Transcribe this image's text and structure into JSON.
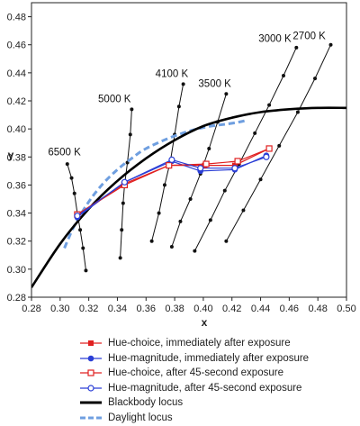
{
  "chart_data": {
    "type": "line",
    "xlabel": "x",
    "ylabel": "y",
    "xlim": [
      0.28,
      0.5
    ],
    "ylim": [
      0.28,
      0.49
    ],
    "xticks": [
      "0.28",
      "0.30",
      "0.32",
      "0.34",
      "0.36",
      "0.38",
      "0.40",
      "0.42",
      "0.44",
      "0.46",
      "0.48",
      "0.50"
    ],
    "yticks": [
      "0.28",
      "0.30",
      "0.32",
      "0.34",
      "0.36",
      "0.38",
      "0.40",
      "0.42",
      "0.44",
      "0.46",
      "0.48"
    ],
    "grid": false,
    "legend_position": "bottom",
    "blackbody_locus": [
      [
        0.28,
        0.287
      ],
      [
        0.3,
        0.318
      ],
      [
        0.32,
        0.343
      ],
      [
        0.34,
        0.363
      ],
      [
        0.36,
        0.379
      ],
      [
        0.38,
        0.392
      ],
      [
        0.4,
        0.402
      ],
      [
        0.42,
        0.408
      ],
      [
        0.44,
        0.412
      ],
      [
        0.46,
        0.414
      ],
      [
        0.48,
        0.415
      ],
      [
        0.5,
        0.415
      ]
    ],
    "daylight_locus": [
      [
        0.303,
        0.315
      ],
      [
        0.31,
        0.331
      ],
      [
        0.32,
        0.348
      ],
      [
        0.33,
        0.361
      ],
      [
        0.34,
        0.371
      ],
      [
        0.35,
        0.379
      ],
      [
        0.36,
        0.386
      ],
      [
        0.38,
        0.395
      ],
      [
        0.4,
        0.401
      ],
      [
        0.42,
        0.404
      ],
      [
        0.43,
        0.406
      ]
    ],
    "cct_lines": [
      {
        "label": "6500 K",
        "points": [
          [
            0.305,
            0.375
          ],
          [
            0.308,
            0.365
          ],
          [
            0.31,
            0.354
          ],
          [
            0.312,
            0.34
          ],
          [
            0.314,
            0.328
          ],
          [
            0.316,
            0.315
          ],
          [
            0.318,
            0.299
          ]
        ]
      },
      {
        "label": "5000 K",
        "points": [
          [
            0.35,
            0.414
          ],
          [
            0.349,
            0.396
          ],
          [
            0.347,
            0.376
          ],
          [
            0.345,
            0.36
          ],
          [
            0.344,
            0.347
          ],
          [
            0.343,
            0.328
          ],
          [
            0.342,
            0.308
          ]
        ]
      },
      {
        "label": "4100 K",
        "points": [
          [
            0.386,
            0.432
          ],
          [
            0.383,
            0.416
          ],
          [
            0.38,
            0.396
          ],
          [
            0.377,
            0.377
          ],
          [
            0.373,
            0.36
          ],
          [
            0.369,
            0.34
          ],
          [
            0.364,
            0.32
          ]
        ]
      },
      {
        "label": "3500 K",
        "points": [
          [
            0.416,
            0.425
          ],
          [
            0.41,
            0.405
          ],
          [
            0.404,
            0.386
          ],
          [
            0.398,
            0.368
          ],
          [
            0.391,
            0.35
          ],
          [
            0.384,
            0.334
          ],
          [
            0.378,
            0.316
          ]
        ]
      },
      {
        "label": "3000 K",
        "points": [
          [
            0.465,
            0.458
          ],
          [
            0.456,
            0.438
          ],
          [
            0.446,
            0.417
          ],
          [
            0.436,
            0.397
          ],
          [
            0.425,
            0.375
          ],
          [
            0.415,
            0.356
          ],
          [
            0.405,
            0.335
          ],
          [
            0.394,
            0.313
          ]
        ]
      },
      {
        "label": "2700 K",
        "points": [
          [
            0.489,
            0.46
          ],
          [
            0.478,
            0.436
          ],
          [
            0.466,
            0.412
          ],
          [
            0.453,
            0.388
          ],
          [
            0.44,
            0.364
          ],
          [
            0.428,
            0.342
          ],
          [
            0.416,
            0.32
          ]
        ]
      }
    ],
    "series": [
      {
        "name": "Hue-choice, immediately after exposure",
        "color": "#e02020",
        "marker": "filled-square",
        "style": "solid",
        "points": [
          [
            0.312,
            0.339
          ],
          [
            0.345,
            0.361
          ],
          [
            0.376,
            0.374
          ],
          [
            0.401,
            0.374
          ],
          [
            0.422,
            0.374
          ],
          [
            0.446,
            0.386
          ]
        ]
      },
      {
        "name": "Hue-magnitude, immediately after exposure",
        "color": "#2b3fd6",
        "marker": "filled-circle",
        "style": "solid",
        "points": [
          [
            0.312,
            0.337
          ],
          [
            0.345,
            0.362
          ],
          [
            0.378,
            0.377
          ],
          [
            0.398,
            0.37
          ],
          [
            0.422,
            0.371
          ],
          [
            0.444,
            0.381
          ]
        ]
      },
      {
        "name": "Hue-choice, after 45-second exposure",
        "color": "#e02020",
        "marker": "open-square",
        "style": "solid",
        "points": [
          [
            0.312,
            0.339
          ],
          [
            0.345,
            0.36
          ],
          [
            0.376,
            0.374
          ],
          [
            0.402,
            0.375
          ],
          [
            0.424,
            0.377
          ],
          [
            0.446,
            0.386
          ]
        ]
      },
      {
        "name": "Hue-magnitude, after 45-second exposure",
        "color": "#2b3fd6",
        "marker": "open-circle",
        "style": "solid",
        "points": [
          [
            0.312,
            0.338
          ],
          [
            0.345,
            0.362
          ],
          [
            0.378,
            0.378
          ],
          [
            0.398,
            0.372
          ],
          [
            0.422,
            0.372
          ],
          [
            0.444,
            0.38
          ]
        ]
      }
    ],
    "legend": [
      {
        "label": "Hue-choice, immediately after exposure",
        "color": "#e02020",
        "marker": "filled-square",
        "dash": "solid",
        "width": 1.2
      },
      {
        "label": "Hue-magnitude, immediately after exposure",
        "color": "#2b3fd6",
        "marker": "filled-circle",
        "dash": "solid",
        "width": 1.2
      },
      {
        "label": "Hue-choice, after 45-second exposure",
        "color": "#e02020",
        "marker": "open-square",
        "dash": "solid",
        "width": 1.2
      },
      {
        "label": "Hue-magnitude, after 45-second exposure",
        "color": "#2b3fd6",
        "marker": "open-circle",
        "dash": "solid",
        "width": 1.2
      },
      {
        "label": "Blackbody locus",
        "color": "#000000",
        "marker": "none",
        "dash": "solid",
        "width": 3
      },
      {
        "label": "Daylight locus",
        "color": "#6f9fe0",
        "marker": "none",
        "dash": "dashed",
        "width": 3
      }
    ],
    "colors": {
      "blackbody": "#000000",
      "daylight": "#6f9fe0",
      "cct": "#111111"
    }
  }
}
